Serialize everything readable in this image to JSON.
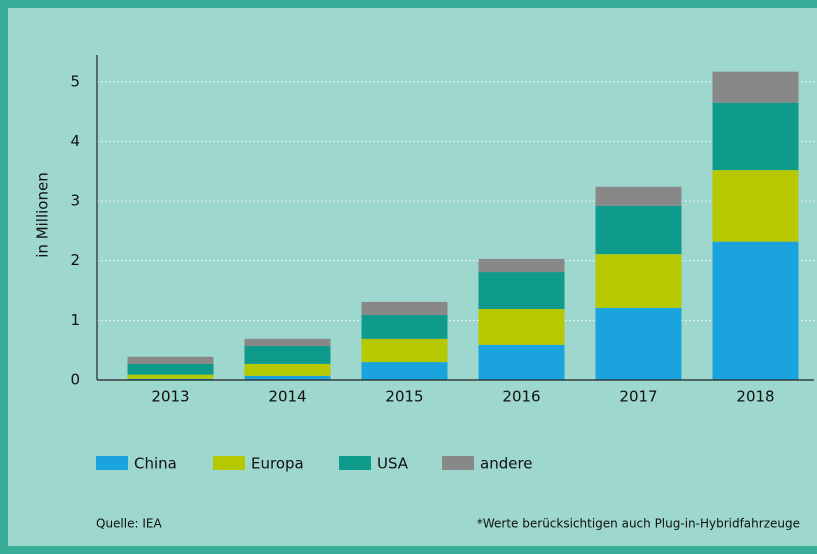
{
  "chart_data": {
    "type": "stacked_bar",
    "ylabel": "in Millionen",
    "categories": [
      "2013",
      "2014",
      "2015",
      "2016",
      "2017",
      "2018"
    ],
    "series": [
      {
        "name": "China",
        "color": "#1aa3dc",
        "values": [
          0.02,
          0.07,
          0.3,
          0.59,
          1.21,
          2.32
        ]
      },
      {
        "name": "Europa",
        "color": "#b5c800",
        "values": [
          0.07,
          0.2,
          0.39,
          0.6,
          0.9,
          1.2
        ]
      },
      {
        "name": "USA",
        "color": "#0e9b8c",
        "values": [
          0.18,
          0.3,
          0.4,
          0.62,
          0.81,
          1.13
        ]
      },
      {
        "name": "andere",
        "color": "#888888",
        "values": [
          0.12,
          0.12,
          0.22,
          0.22,
          0.32,
          0.52
        ]
      }
    ],
    "ylim": [
      0,
      5.45
    ],
    "yticks": [
      0,
      1,
      2,
      3,
      4,
      5
    ],
    "grid": true,
    "source": "Quelle: IEA",
    "note": "*Werte berücksichtigen auch Plug-in-Hybridfahrzeuge"
  }
}
